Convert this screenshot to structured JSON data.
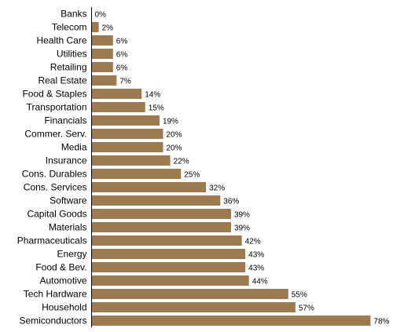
{
  "chart_data": {
    "type": "bar",
    "orientation": "horizontal",
    "title": "",
    "xlabel": "",
    "ylabel": "",
    "value_suffix": "%",
    "xlim": [
      0,
      78
    ],
    "grid": false,
    "bar_color": "#9c7a4f",
    "categories": [
      "Banks",
      "Telecom",
      "Health Care",
      "Utilities",
      "Retailing",
      "Real Estate",
      "Food & Staples",
      "Transportation",
      "Financials",
      "Commer. Serv.",
      "Media",
      "Insurance",
      "Cons. Durables",
      "Cons. Services",
      "Software",
      "Capital Goods",
      "Materials",
      "Pharmaceuticals",
      "Energy",
      "Food & Bev.",
      "Automotive",
      "Tech Hardware",
      "Household",
      "Semiconductors"
    ],
    "values": [
      0,
      2,
      6,
      6,
      6,
      7,
      14,
      15,
      19,
      20,
      20,
      22,
      25,
      32,
      36,
      39,
      39,
      42,
      43,
      43,
      44,
      55,
      57,
      78
    ],
    "value_labels": [
      "0%",
      "2%",
      "6%",
      "6%",
      "6%",
      "7%",
      "14%",
      "15%",
      "19%",
      "20%",
      "20%",
      "22%",
      "25%",
      "32%",
      "36%",
      "39%",
      "39%",
      "42%",
      "43%",
      "43%",
      "44%",
      "55%",
      "57%",
      "78%"
    ]
  }
}
